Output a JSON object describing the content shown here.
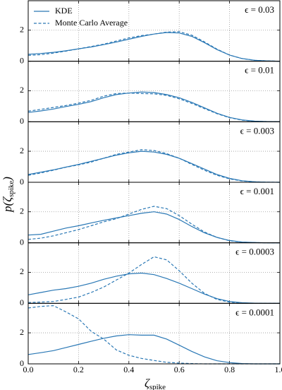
{
  "xlabel": {
    "symbol": "ζ",
    "sub": "spike"
  },
  "ylabel": {
    "lead": "p(ζ",
    "sub": "spike",
    "close": ")"
  },
  "x": [
    0,
    0.05,
    0.1,
    0.15,
    0.2,
    0.25,
    0.3,
    0.35,
    0.4,
    0.45,
    0.5,
    0.55,
    0.6,
    0.65,
    0.7,
    0.75,
    0.8,
    0.85,
    0.9,
    0.95,
    1.0
  ],
  "xlim": [
    0,
    1
  ],
  "xticks": [
    {
      "value": 0,
      "label": "0.0"
    },
    0.2,
    0.4,
    0.6,
    0.8,
    {
      "value": 1,
      "label": "1.0"
    }
  ],
  "legend": "upper left",
  "chart_data": [
    {
      "type": "line",
      "annotation": "ϵ = 0.03",
      "ylim": [
        0,
        3.9
      ],
      "yticks": [
        0,
        2
      ],
      "grid": true,
      "series": [
        {
          "name": "KDE",
          "color": "#2a78b5",
          "style": "solid",
          "values": [
            0.45,
            0.5,
            0.57,
            0.67,
            0.8,
            0.92,
            1.07,
            1.23,
            1.42,
            1.6,
            1.75,
            1.85,
            1.82,
            1.6,
            1.2,
            0.75,
            0.4,
            0.17,
            0.06,
            0.02,
            0
          ]
        },
        {
          "name": "Monte Carlo Average",
          "color": "#2a78b5",
          "style": "dashed",
          "values": [
            0.38,
            0.42,
            0.52,
            0.65,
            0.8,
            0.95,
            1.1,
            1.3,
            1.5,
            1.65,
            1.75,
            1.88,
            1.9,
            1.68,
            1.25,
            0.78,
            0.4,
            0.17,
            0.06,
            0.02,
            0
          ]
        }
      ]
    },
    {
      "type": "line",
      "annotation": "ϵ = 0.01",
      "ylim": [
        0,
        3.9
      ],
      "yticks": [
        0,
        2
      ],
      "grid": true,
      "series": [
        {
          "color": "#2a78b5",
          "style": "solid",
          "values": [
            0.6,
            0.7,
            0.82,
            0.98,
            1.12,
            1.3,
            1.55,
            1.75,
            1.85,
            1.92,
            1.88,
            1.75,
            1.55,
            1.25,
            0.9,
            0.55,
            0.28,
            0.12,
            0.04,
            0.01,
            0
          ]
        },
        {
          "color": "#2a78b5",
          "style": "dashed",
          "values": [
            0.68,
            0.8,
            0.92,
            1.05,
            1.2,
            1.38,
            1.65,
            1.82,
            1.85,
            1.82,
            1.8,
            1.7,
            1.48,
            1.18,
            0.85,
            0.52,
            0.26,
            0.1,
            0.03,
            0.01,
            0
          ]
        }
      ]
    },
    {
      "type": "line",
      "annotation": "ϵ = 0.003",
      "ylim": [
        0,
        3.9
      ],
      "yticks": [
        0,
        2
      ],
      "grid": true,
      "series": [
        {
          "color": "#2a78b5",
          "style": "solid",
          "values": [
            0.5,
            0.65,
            0.8,
            0.98,
            1.15,
            1.35,
            1.55,
            1.75,
            1.9,
            2.0,
            1.95,
            1.8,
            1.55,
            1.2,
            0.85,
            0.5,
            0.25,
            0.1,
            0.03,
            0.01,
            0
          ]
        },
        {
          "color": "#2a78b5",
          "style": "dashed",
          "values": [
            0.45,
            0.6,
            0.78,
            0.97,
            1.12,
            1.3,
            1.55,
            1.8,
            1.95,
            2.1,
            2.05,
            1.85,
            1.55,
            1.15,
            0.78,
            0.45,
            0.22,
            0.08,
            0.03,
            0.01,
            0
          ]
        }
      ]
    },
    {
      "type": "line",
      "annotation": "ϵ = 0.001",
      "ylim": [
        0,
        3.9
      ],
      "yticks": [
        0,
        2
      ],
      "grid": true,
      "series": [
        {
          "color": "#2a78b5",
          "style": "solid",
          "values": [
            0.5,
            0.55,
            0.75,
            0.95,
            1.1,
            1.28,
            1.45,
            1.6,
            1.75,
            1.9,
            2.0,
            1.85,
            1.5,
            1.05,
            0.65,
            0.35,
            0.15,
            0.05,
            0.02,
            0,
            0
          ]
        },
        {
          "color": "#2a78b5",
          "style": "dashed",
          "values": [
            0.22,
            0.3,
            0.45,
            0.65,
            0.85,
            1.1,
            1.35,
            1.55,
            1.85,
            2.15,
            2.35,
            2.2,
            1.75,
            1.2,
            0.7,
            0.35,
            0.13,
            0.04,
            0.01,
            0,
            0
          ]
        }
      ]
    },
    {
      "type": "line",
      "annotation": "ϵ = 0.0003",
      "ylim": [
        0,
        3.9
      ],
      "yticks": [
        0,
        2
      ],
      "grid": true,
      "series": [
        {
          "color": "#2a78b5",
          "style": "solid",
          "values": [
            0.55,
            0.7,
            0.85,
            0.95,
            1.1,
            1.3,
            1.55,
            1.75,
            1.9,
            1.95,
            1.85,
            1.6,
            1.3,
            0.95,
            0.6,
            0.3,
            0.12,
            0.04,
            0.01,
            0,
            0
          ]
        },
        {
          "color": "#2a78b5",
          "style": "dashed",
          "values": [
            0.05,
            0.08,
            0.12,
            0.25,
            0.4,
            0.7,
            1.05,
            1.5,
            1.95,
            2.5,
            3.0,
            2.8,
            2.1,
            1.3,
            0.65,
            0.25,
            0.08,
            0.02,
            0,
            0,
            0
          ]
        }
      ]
    },
    {
      "type": "line",
      "annotation": "ϵ = 0.0001",
      "ylim": [
        0,
        3.9
      ],
      "yticks": [
        0,
        2
      ],
      "grid": true,
      "series": [
        {
          "color": "#2a78b5",
          "style": "solid",
          "values": [
            0.6,
            0.72,
            0.85,
            1.05,
            1.25,
            1.45,
            1.65,
            1.8,
            1.88,
            1.85,
            1.85,
            1.6,
            1.2,
            0.8,
            0.45,
            0.2,
            0.08,
            0.02,
            0,
            0,
            0
          ]
        },
        {
          "color": "#2a78b5",
          "style": "dashed",
          "values": [
            3.6,
            3.7,
            3.75,
            3.35,
            2.9,
            2.1,
            1.6,
            0.9,
            0.55,
            0.35,
            0.22,
            0.1,
            0.05,
            0.02,
            0,
            0,
            0,
            0,
            0,
            0,
            0
          ]
        }
      ]
    }
  ]
}
